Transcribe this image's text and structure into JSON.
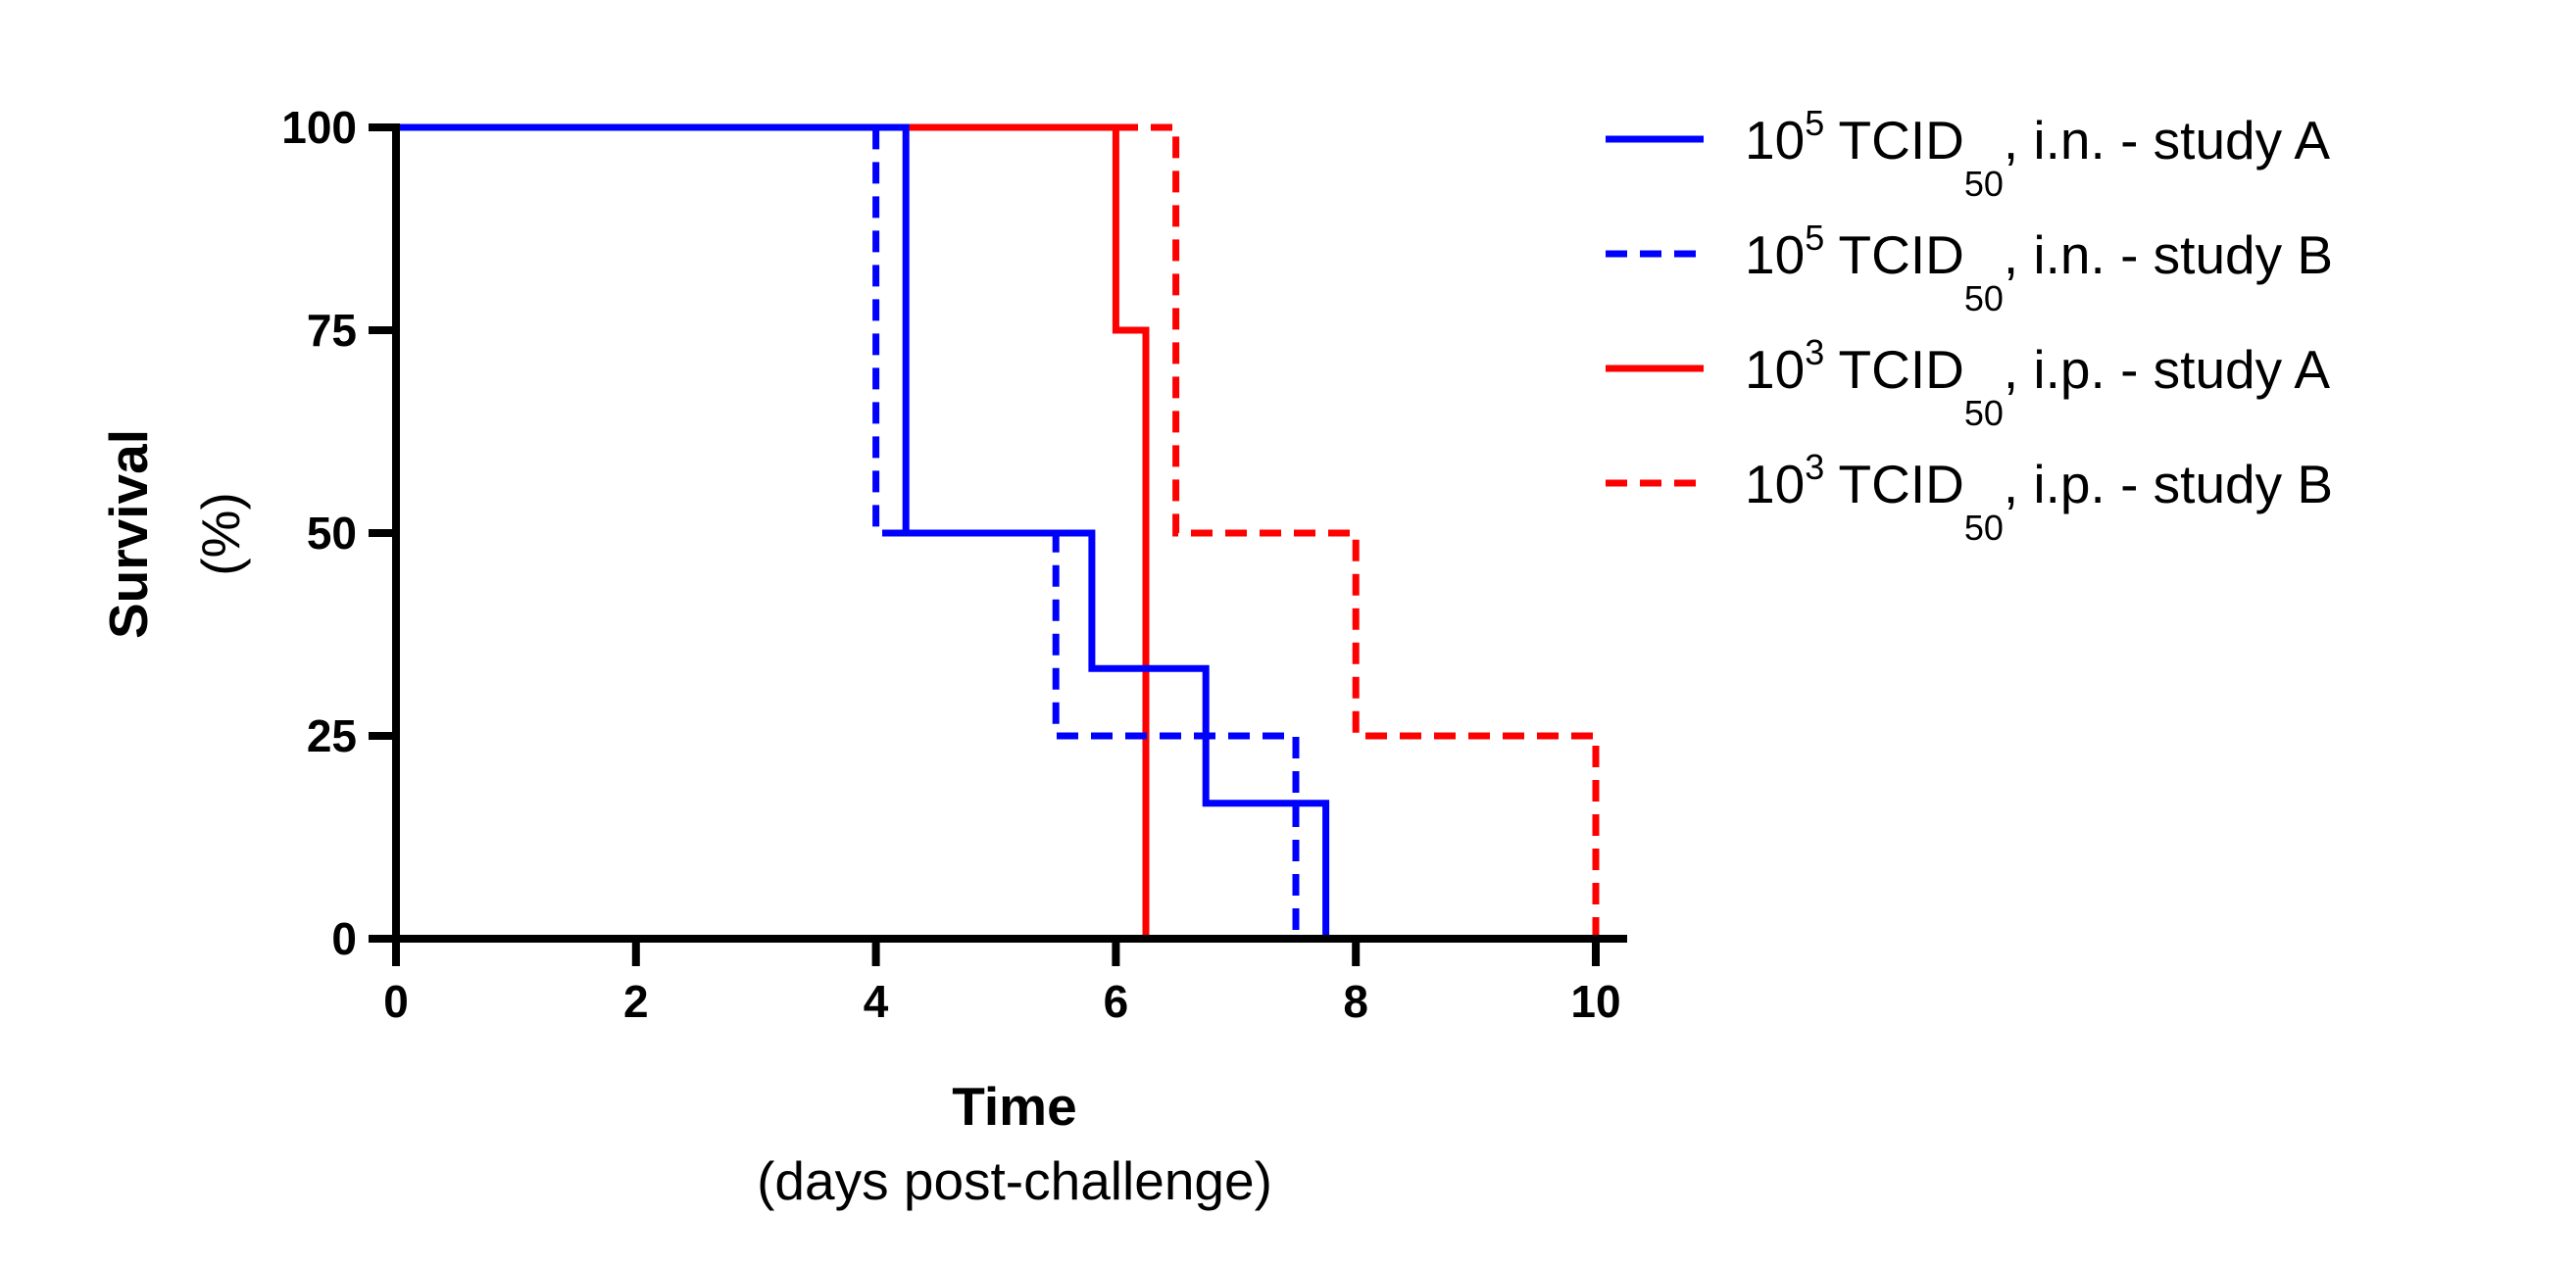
{
  "chart_data": {
    "type": "line",
    "subtype": "kaplan-meier-step",
    "xlabel": "Time",
    "xlabel_sub": "(days post-challenge)",
    "ylabel": "Survival",
    "ylabel_sub": "(%)",
    "xlim": [
      0,
      10
    ],
    "ylim": [
      0,
      100
    ],
    "xticks": [
      0,
      2,
      4,
      6,
      8,
      10
    ],
    "yticks": [
      0,
      25,
      50,
      75,
      100
    ],
    "grid": false,
    "legend_position": "top-right",
    "series": [
      {
        "name_base": "10",
        "name_sup": "5",
        "name_mid": " TCID",
        "name_sub": "50",
        "name_tail": ", i.n. - study A",
        "color": "#0000ff",
        "dash": false,
        "x": [
          0,
          4.25,
          4.25,
          5.8,
          5.8,
          6.75,
          6.75,
          7.75,
          7.75
        ],
        "y": [
          100,
          100,
          50,
          50,
          33.3,
          33.3,
          16.7,
          16.7,
          0
        ]
      },
      {
        "name_base": "10",
        "name_sup": "5",
        "name_mid": " TCID",
        "name_sub": "50",
        "name_tail": ", i.n. - study B",
        "color": "#0000ff",
        "dash": true,
        "x": [
          0,
          4.0,
          4.0,
          5.5,
          5.5,
          7.5,
          7.5
        ],
        "y": [
          100,
          100,
          50,
          50,
          25,
          25,
          0
        ]
      },
      {
        "name_base": "10",
        "name_sup": "3",
        "name_mid": " TCID",
        "name_sub": "50",
        "name_tail": ", i.p. - study A",
        "color": "#ff0000",
        "dash": false,
        "x": [
          0,
          6.0,
          6.0,
          6.25,
          6.25
        ],
        "y": [
          100,
          100,
          75,
          75,
          0
        ]
      },
      {
        "name_base": "10",
        "name_sup": "3",
        "name_mid": " TCID",
        "name_sub": "50",
        "name_tail": ", i.p. - study B",
        "color": "#ff0000",
        "dash": true,
        "x": [
          0,
          6.5,
          6.5,
          8.0,
          8.0,
          10.0,
          10.0
        ],
        "y": [
          100,
          100,
          50,
          50,
          25,
          25,
          0
        ]
      }
    ]
  }
}
